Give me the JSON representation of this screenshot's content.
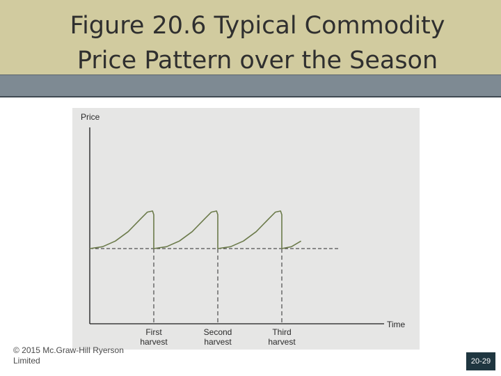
{
  "slide": {
    "title": "Figure 20.6 Typical Commodity\nPrice Pattern over the Season",
    "copyright": "© 2015 Mc.Graw-Hill Ryerson\nLimited",
    "slide_number": "20-29"
  },
  "colors": {
    "title_band": "#d1cb9f",
    "title_bar": "#7e8a93",
    "panel": "#e6e6e5",
    "curve": "#6b7a4a",
    "badge": "#1f3640"
  },
  "chart_data": {
    "type": "line",
    "ylabel": "Price",
    "xlabel": "Time",
    "grid": false,
    "x_ticks": [
      {
        "label_line1": "First",
        "label_line2": "harvest",
        "x": 1
      },
      {
        "label_line1": "Second",
        "label_line2": "harvest",
        "x": 2
      },
      {
        "label_line1": "Third",
        "label_line2": "harvest",
        "x": 3
      }
    ],
    "baseline_y": 0,
    "series": [
      {
        "x": [
          0,
          0.2,
          0.4,
          0.6,
          0.8,
          0.9,
          0.98,
          1.0,
          1.0,
          1.2,
          1.4,
          1.6,
          1.8,
          1.9,
          1.98,
          2.0,
          2.0,
          2.2,
          2.4,
          2.6,
          2.8,
          2.9,
          2.98,
          3.0,
          3.0,
          3.15,
          3.3
        ],
        "y": [
          0,
          0.05,
          0.2,
          0.45,
          0.8,
          0.97,
          1.0,
          0.9,
          0,
          0.05,
          0.2,
          0.45,
          0.8,
          0.97,
          1.0,
          0.9,
          0,
          0.05,
          0.2,
          0.45,
          0.8,
          0.97,
          1.0,
          0.9,
          0,
          0.05,
          0.2
        ]
      }
    ]
  }
}
